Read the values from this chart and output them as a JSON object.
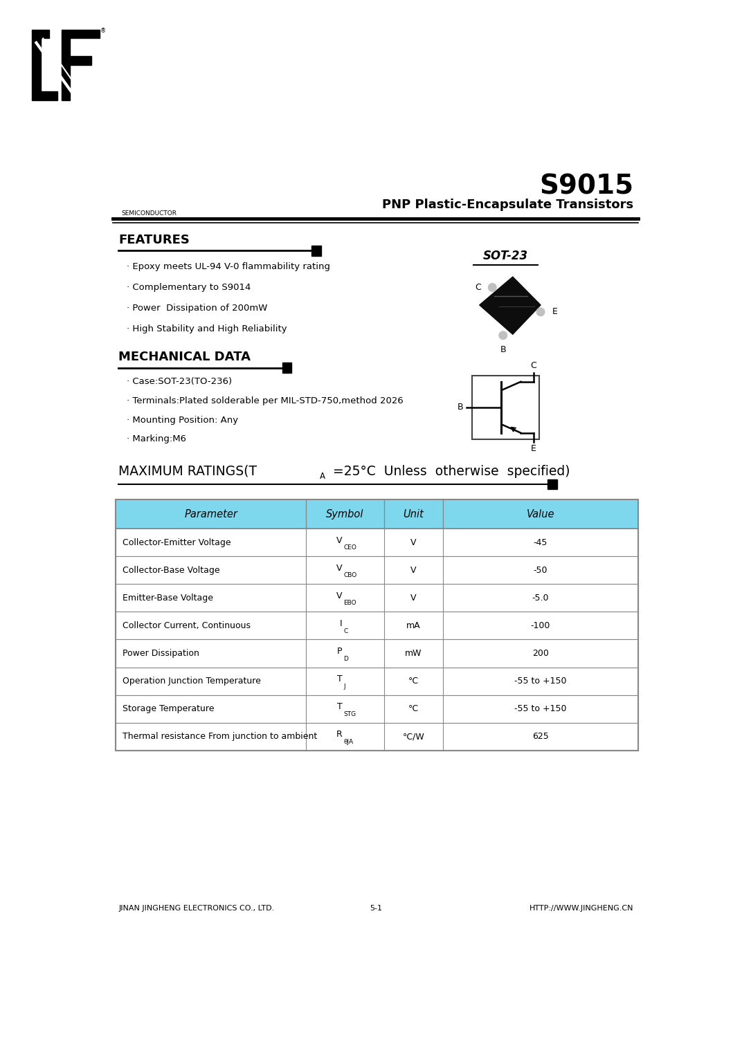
{
  "title": "S9015",
  "subtitle": "PNP Plastic-Encapsulate Transistors",
  "semiconductor_text": "SEMICONDUCTOR",
  "features_title": "FEATURES",
  "features": [
    "· Epoxy meets UL-94 V-0 flammability rating",
    "· Complementary to S9014",
    "· Power  Dissipation of 200mW",
    "· High Stability and High Reliability"
  ],
  "sot23_label": "SOT-23",
  "mechanical_title": "MECHANICAL DATA",
  "mechanical": [
    "· Case:SOT-23(TO-236)",
    "· Terminals:Plated solderable per MIL-STD-750,method 2026",
    "· Mounting Position: Any",
    "· Marking:M6"
  ],
  "footer_left": "JINAN JINGHENG ELECTRONICS CO., LTD.",
  "footer_center": "5-1",
  "footer_right": "HTTP://WWW.JINGHENG.CN",
  "table_header_bg": "#7dd8ee",
  "table_border_color": "#888888",
  "bg_color": "#ffffff"
}
